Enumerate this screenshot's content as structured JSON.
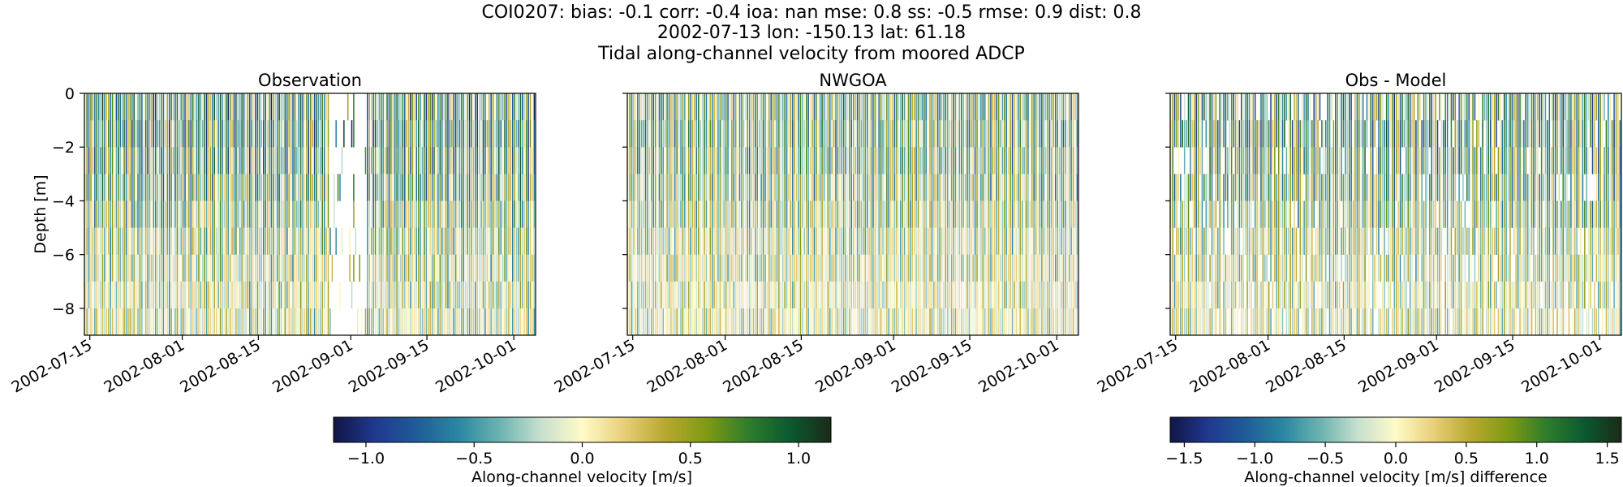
{
  "figure": {
    "title_lines": [
      "COI0207: bias: -0.1  corr: -0.4  ioa: nan  mse: 0.8  ss: -0.5  rmse: 0.9  dist: 0.8",
      "2002-07-13 lon: -150.13 lat: 61.18",
      "Tidal along-channel velocity from moored ADCP"
    ]
  },
  "colormap": [
    "#111644",
    "#20388f",
    "#1f5c98",
    "#2a86a2",
    "#6bb3b0",
    "#c7e0cf",
    "#fffac8",
    "#e8cf7a",
    "#b8a830",
    "#7f9a14",
    "#2f7d2c",
    "#0b5a30",
    "#1a2a18"
  ],
  "chart_data": [
    {
      "type": "heatmap",
      "title": "Observation",
      "ylabel": "Depth [m]",
      "xlabel": "",
      "x_range": [
        "2002-07-14",
        "2002-10-05"
      ],
      "y_range": [
        -9,
        0
      ],
      "x_ticks": [
        "2002-07-15",
        "2002-08-01",
        "2002-08-15",
        "2002-09-01",
        "2002-09-15",
        "2002-10-01"
      ],
      "y_ticks": [
        0,
        -2,
        -4,
        -6,
        -8
      ],
      "color_range": [
        -1.15,
        1.15
      ],
      "description_of_values": "Alternating tidal velocities; dense dark blue/green stripes; gap near 2002-08-28 to 2002-09-04",
      "gap": [
        "2002-08-28",
        "2002-09-04"
      ]
    },
    {
      "type": "heatmap",
      "title": "NWGOA",
      "ylabel": "",
      "xlabel": "",
      "x_range": [
        "2002-07-14",
        "2002-10-05"
      ],
      "y_range": [
        -9,
        0
      ],
      "x_ticks": [
        "2002-07-15",
        "2002-08-01",
        "2002-08-15",
        "2002-09-01",
        "2002-09-15",
        "2002-10-01"
      ],
      "y_ticks": [
        0,
        -2,
        -4,
        -6,
        -8
      ],
      "color_range": [
        -1.15,
        1.15
      ]
    },
    {
      "type": "heatmap",
      "title": "Obs - Model",
      "ylabel": "",
      "xlabel": "",
      "x_range": [
        "2002-07-14",
        "2002-10-05"
      ],
      "y_range": [
        -9,
        0
      ],
      "x_ticks": [
        "2002-07-15",
        "2002-08-01",
        "2002-08-15",
        "2002-09-01",
        "2002-09-15",
        "2002-10-01"
      ],
      "y_ticks": [
        0,
        -2,
        -4,
        -6,
        -8
      ],
      "color_range": [
        -1.6,
        1.6
      ]
    }
  ],
  "colorbars": [
    {
      "label": "Along-channel velocity [m/s]",
      "range": [
        -1.15,
        1.15
      ],
      "ticks": [
        "−1.0",
        "−0.5",
        "0.0",
        "0.5",
        "1.0"
      ],
      "tick_values": [
        -1.0,
        -0.5,
        0.0,
        0.5,
        1.0
      ]
    },
    {
      "label": "Along-channel velocity [m/s] difference",
      "range": [
        -1.6,
        1.6
      ],
      "ticks": [
        "−1.5",
        "−1.0",
        "−0.5",
        "0.0",
        "0.5",
        "1.0",
        "1.5"
      ],
      "tick_values": [
        -1.5,
        -1.0,
        -0.5,
        0.0,
        0.5,
        1.0,
        1.5
      ]
    }
  ]
}
